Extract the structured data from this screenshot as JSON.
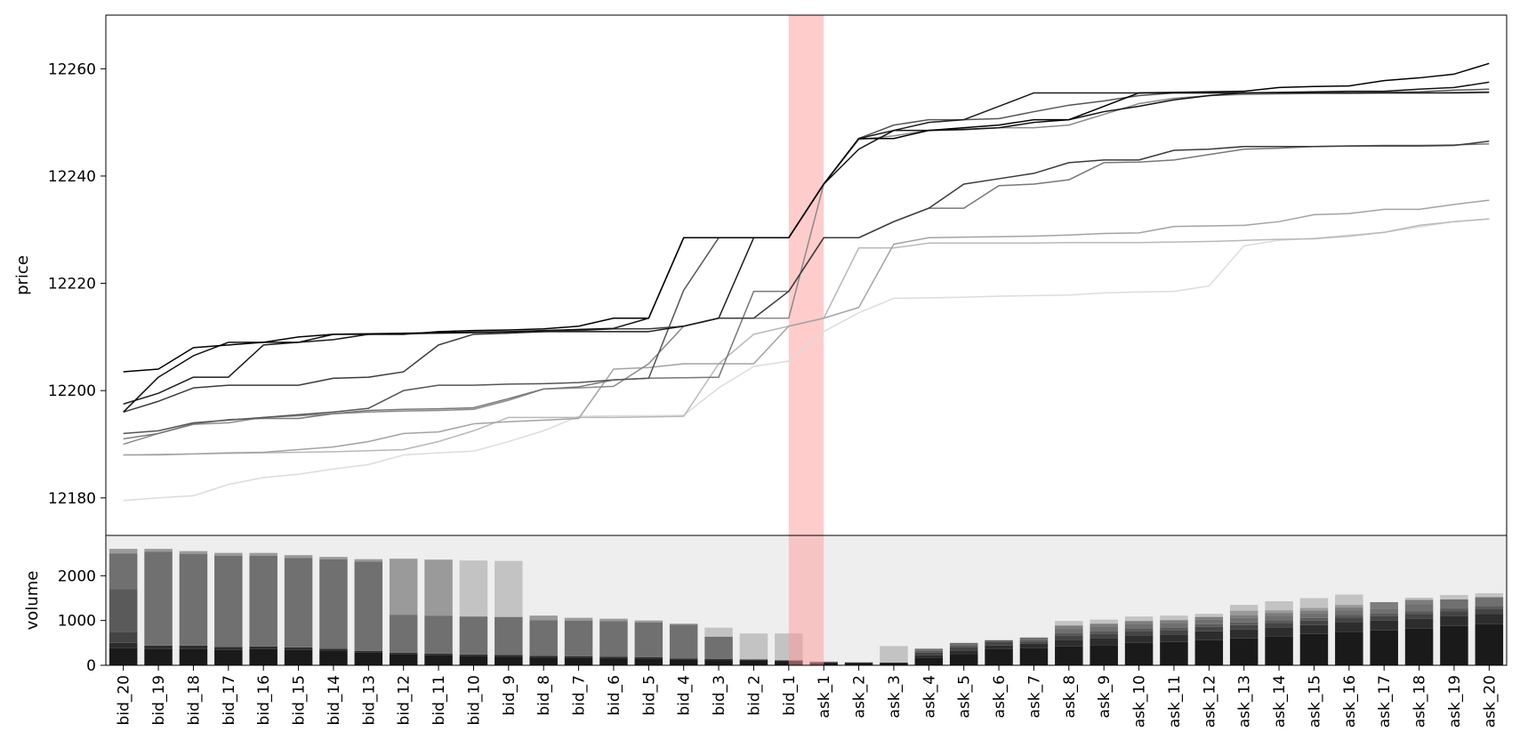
{
  "chart_data": [
    {
      "type": "line",
      "ylabel": "price",
      "ylim": [
        12173,
        12270
      ],
      "yticks": [
        12180,
        12200,
        12220,
        12240,
        12260
      ],
      "highlight_band": {
        "from": "bid_1",
        "to": "ask_1",
        "color": "#ff9999"
      },
      "x": [
        "bid_20",
        "bid_19",
        "bid_18",
        "bid_17",
        "bid_16",
        "bid_15",
        "bid_14",
        "bid_13",
        "bid_12",
        "bid_11",
        "bid_10",
        "bid_9",
        "bid_8",
        "bid_7",
        "bid_6",
        "bid_5",
        "bid_4",
        "bid_3",
        "bid_2",
        "bid_1",
        "ask_1",
        "ask_2",
        "ask_3",
        "ask_4",
        "ask_5",
        "ask_6",
        "ask_7",
        "ask_8",
        "ask_9",
        "ask_10",
        "ask_11",
        "ask_12",
        "ask_13",
        "ask_14",
        "ask_15",
        "ask_16",
        "ask_17",
        "ask_18",
        "ask_19",
        "ask_20"
      ],
      "series": [
        {
          "color": "#000000",
          "values": [
            12203.5,
            12204,
            12208,
            12208.5,
            12209,
            12210,
            12210.5,
            12210.5,
            12210.5,
            12211,
            12211.2,
            12211.3,
            12211.5,
            12212,
            12213.5,
            12213.5,
            12228.5,
            12228.5,
            12228.5,
            12228.5,
            12238.5,
            12247,
            12247,
            12248.5,
            12249,
            12249.5,
            12250.5,
            12250.5,
            12253,
            12255.5,
            12255.6,
            12255.7,
            12255.8,
            12256.5,
            12256.7,
            12256.8,
            12257.8,
            12258.3,
            12259,
            12261
          ]
        },
        {
          "color": "#111111",
          "values": [
            12196,
            12202.5,
            12206.5,
            12209,
            12209,
            12209,
            12210.5,
            12210.6,
            12210.7,
            12210.8,
            12210.9,
            12211,
            12211.2,
            12211.4,
            12211.6,
            12213.5,
            12228.5,
            12228.5,
            12228.5,
            12228.5,
            12238.5,
            12245,
            12248.5,
            12248.5,
            12248.7,
            12249,
            12250,
            12250.5,
            12252,
            12253,
            12254.2,
            12255,
            12255.5,
            12255.6,
            12255.7,
            12255.8,
            12255.8,
            12256.2,
            12256.5,
            12257.5
          ]
        },
        {
          "color": "#1c1c1c",
          "values": [
            12197.5,
            12199.5,
            12202.5,
            12202.5,
            12208.5,
            12209,
            12209.5,
            12210.5,
            12210.6,
            12210.7,
            12210.8,
            12210.9,
            12211,
            12211,
            12211,
            12211,
            12212,
            12213.5,
            12228.5,
            12228.5,
            12238.5,
            12247,
            12248.5,
            12250,
            12250.5,
            12253,
            12255.5,
            12255.5,
            12255.5,
            12255.5,
            12255.5,
            12255.5,
            12255.5,
            12255.5,
            12255.5,
            12255.5,
            12255.5,
            12255.5,
            12255.5,
            12255.6
          ]
        },
        {
          "color": "#3a3a3a",
          "values": [
            12196,
            12198,
            12200.5,
            12201,
            12201,
            12201,
            12202.3,
            12202.5,
            12203.5,
            12208.5,
            12210.5,
            12210.7,
            12211,
            12211.2,
            12211.5,
            12211.5,
            12212,
            12213.5,
            12213.5,
            12218.5,
            12228.5,
            12228.5,
            12231.5,
            12234,
            12238.5,
            12239.5,
            12240.5,
            12242.5,
            12243,
            12243,
            12244.8,
            12245,
            12245.5,
            12245.5,
            12245.5,
            12245.6,
            12245.6,
            12245.6,
            12245.7,
            12246.5
          ]
        },
        {
          "color": "#555555",
          "values": [
            12192,
            12192.5,
            12194,
            12194.5,
            12195,
            12195.5,
            12196,
            12196.7,
            12200,
            12201,
            12201,
            12201.2,
            12201.3,
            12201.5,
            12202,
            12202.3,
            12218.7,
            12228.5,
            12228.5,
            12228.5,
            12238.5,
            12247,
            12249.5,
            12250.5,
            12250.5,
            12250.7,
            12252,
            12253.2,
            12254,
            12255,
            12255.5,
            12255.5,
            12255.5,
            12255.5,
            12255.5,
            12255.5,
            12255.6,
            12255.7,
            12256,
            12256.2
          ]
        },
        {
          "color": "#777777",
          "values": [
            12191,
            12192,
            12193.8,
            12194.6,
            12194.8,
            12194.8,
            12195.7,
            12196.3,
            12196.5,
            12196.6,
            12196.8,
            12198.5,
            12200.3,
            12200.7,
            12202,
            12202.3,
            12202.4,
            12202.5,
            12218.5,
            12218.5,
            12228.5,
            12228.5,
            12231.5,
            12234,
            12234,
            12238.2,
            12238.5,
            12239.3,
            12242.5,
            12242.6,
            12243,
            12244,
            12245,
            12245.2,
            12245.5,
            12245.6,
            12245.7,
            12245.7,
            12245.8,
            12246
          ]
        },
        {
          "color": "#8a8a8a",
          "values": [
            12190,
            12192,
            12193.7,
            12194,
            12195,
            12195.3,
            12195.7,
            12196,
            12196.2,
            12196.3,
            12196.5,
            12198.2,
            12200.3,
            12200.5,
            12200.8,
            12205,
            12212,
            12213.5,
            12213.5,
            12213.5,
            12238.5,
            12246.8,
            12247.5,
            12248.5,
            12248.6,
            12249,
            12249,
            12249.5,
            12251.5,
            12253.5,
            12254.5,
            12255,
            12255.2,
            12255.3,
            12255.4,
            12255.4,
            12255.5,
            12255.5,
            12255.6,
            12255.7
          ]
        },
        {
          "color": "#a3a3a3",
          "values": [
            12188,
            12188,
            12188.2,
            12188.4,
            12188.5,
            12189,
            12189.5,
            12190.5,
            12192,
            12192.3,
            12193.8,
            12194.2,
            12194.5,
            12194.8,
            12204,
            12204.3,
            12205,
            12205,
            12205,
            12212,
            12213.5,
            12215.5,
            12227.3,
            12228.5,
            12228.6,
            12228.7,
            12228.8,
            12229,
            12229.3,
            12229.4,
            12230.6,
            12230.7,
            12230.8,
            12231.5,
            12232.8,
            12233,
            12233.8,
            12233.8,
            12234.7,
            12235.5
          ]
        },
        {
          "color": "#b8b8b8",
          "values": [
            12188,
            12188.1,
            12188.2,
            12188.3,
            12188.4,
            12188.5,
            12188.6,
            12188.8,
            12189,
            12190.5,
            12192.5,
            12195,
            12195,
            12195,
            12195,
            12195.1,
            12195.2,
            12205,
            12210.5,
            12212,
            12213.5,
            12226.6,
            12226.6,
            12227.5,
            12227.5,
            12227.5,
            12227.5,
            12227.6,
            12227.6,
            12227.6,
            12227.7,
            12227.8,
            12228,
            12228.2,
            12228.3,
            12228.8,
            12229.5,
            12230.8,
            12231.5,
            12232
          ]
        },
        {
          "color": "#dcdcdc",
          "values": [
            12179.5,
            12180,
            12180.4,
            12182.5,
            12183.8,
            12184.4,
            12185.4,
            12186.2,
            12188,
            12188.4,
            12188.7,
            12190.5,
            12192.5,
            12195.2,
            12195.3,
            12195.3,
            12195.4,
            12200.5,
            12204.5,
            12205.5,
            12211,
            12214.5,
            12217.2,
            12217.3,
            12217.4,
            12217.6,
            12217.7,
            12217.8,
            12218.2,
            12218.4,
            12218.5,
            12219.5,
            12227,
            12228,
            12228.4,
            12229,
            12229.5,
            12230.5,
            12231.5,
            12232
          ]
        }
      ]
    },
    {
      "type": "bar",
      "ylabel": "volume",
      "ylim": [
        0,
        2900
      ],
      "yticks": [
        "0",
        "1000",
        "2000"
      ],
      "categories": [
        "bid_20",
        "bid_19",
        "bid_18",
        "bid_17",
        "bid_16",
        "bid_15",
        "bid_14",
        "bid_13",
        "bid_12",
        "bid_11",
        "bid_10",
        "bid_9",
        "bid_8",
        "bid_7",
        "bid_6",
        "bid_5",
        "bid_4",
        "bid_3",
        "bid_2",
        "bid_1",
        "ask_1",
        "ask_2",
        "ask_3",
        "ask_4",
        "ask_5",
        "ask_6",
        "ask_7",
        "ask_8",
        "ask_9",
        "ask_10",
        "ask_11",
        "ask_12",
        "ask_13",
        "ask_14",
        "ask_15",
        "ask_16",
        "ask_17",
        "ask_18",
        "ask_19",
        "ask_20"
      ],
      "stack_colors": [
        "#1a1a1a",
        "#2d2d2d",
        "#444444",
        "#5a5a5a",
        "#707070",
        "#7d7d7d",
        "#9a9a9a",
        "#c3c3c3"
      ],
      "series": [
        {
          "values": [
            380,
            360,
            360,
            340,
            360,
            340,
            330,
            280,
            240,
            220,
            200,
            190,
            170,
            160,
            150,
            140,
            120,
            110,
            100,
            90,
            50,
            40,
            40,
            160,
            250,
            360,
            380,
            420,
            450,
            500,
            520,
            560,
            600,
            650,
            700,
            750,
            780,
            820,
            880,
            920
          ]
        },
        {
          "values": [
            120,
            80,
            80,
            70,
            60,
            60,
            40,
            40,
            40,
            40,
            40,
            40,
            40,
            40,
            40,
            40,
            30,
            30,
            30,
            20,
            20,
            20,
            20,
            60,
            80,
            80,
            100,
            150,
            160,
            170,
            170,
            200,
            200,
            200,
            200,
            220,
            220,
            220,
            220,
            230
          ]
        },
        {
          "values": [
            250,
            0,
            0,
            0,
            0,
            0,
            0,
            0,
            0,
            0,
            0,
            0,
            0,
            0,
            0,
            0,
            0,
            0,
            0,
            0,
            0,
            0,
            0,
            60,
            80,
            80,
            50,
            100,
            100,
            100,
            100,
            100,
            100,
            100,
            100,
            100,
            100,
            110,
            110,
            110
          ]
        },
        {
          "values": [
            950,
            0,
            0,
            0,
            0,
            0,
            0,
            0,
            0,
            0,
            0,
            0,
            0,
            0,
            0,
            0,
            0,
            0,
            0,
            0,
            0,
            0,
            0,
            40,
            40,
            40,
            40,
            60,
            60,
            60,
            60,
            60,
            60,
            60,
            60,
            60,
            60,
            60,
            60,
            60
          ]
        },
        {
          "values": [
            800,
            2100,
            2050,
            2040,
            2030,
            2000,
            2000,
            2000,
            850,
            850,
            850,
            850,
            800,
            800,
            800,
            780,
            760,
            500,
            0,
            0,
            0,
            0,
            0,
            50,
            50,
            0,
            50,
            100,
            100,
            100,
            100,
            100,
            100,
            100,
            100,
            100,
            100,
            150,
            200,
            200
          ]
        },
        {
          "values": [
            0,
            0,
            0,
            0,
            0,
            0,
            0,
            0,
            0,
            0,
            0,
            0,
            0,
            0,
            0,
            0,
            0,
            0,
            0,
            0,
            0,
            0,
            0,
            0,
            0,
            0,
            0,
            60,
            60,
            60,
            60,
            60,
            60,
            60,
            60,
            60,
            150,
            100,
            0,
            0
          ]
        },
        {
          "values": [
            100,
            60,
            60,
            60,
            60,
            60,
            50,
            50,
            1250,
            1250,
            0,
            0,
            100,
            60,
            50,
            40,
            20,
            0,
            0,
            0,
            0,
            0,
            0,
            0,
            0,
            0,
            0,
            0,
            0,
            0,
            0,
            0,
            100,
            60,
            60,
            60,
            0,
            0,
            0,
            0
          ]
        },
        {
          "values": [
            0,
            0,
            0,
            0,
            0,
            0,
            0,
            0,
            0,
            0,
            1250,
            1250,
            0,
            0,
            0,
            0,
            0,
            200,
            580,
            600,
            20,
            20,
            370,
            0,
            0,
            0,
            0,
            100,
            90,
            100,
            100,
            70,
            130,
            200,
            220,
            230,
            0,
            50,
            100,
            90
          ]
        }
      ]
    }
  ]
}
